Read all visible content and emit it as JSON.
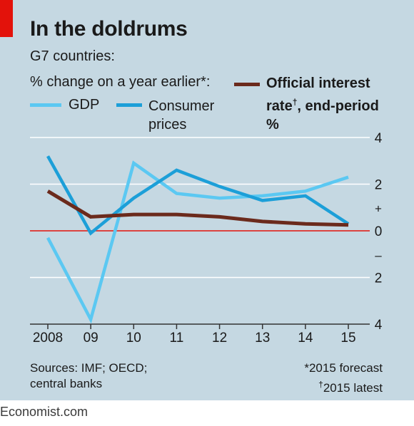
{
  "header": {
    "title": "In the doldrums",
    "subtitle": "G7 countries:",
    "left_axis_note": "% change on a year earlier*:",
    "legend": {
      "gdp": "GDP",
      "cpi_line1": "Consumer",
      "cpi_line2": "prices",
      "rate_line1": "Official interest",
      "rate_line2a": "rate",
      "rate_dagger": "†",
      "rate_line2b": ", end-period",
      "rate_line3": "%"
    }
  },
  "footer": {
    "sources_line1": "Sources: IMF; OECD;",
    "sources_line2": "central banks",
    "note_forecast": "*2015 forecast",
    "note_latest_dagger": "†",
    "note_latest": "2015 latest",
    "brand": "Economist.com"
  },
  "colors": {
    "background": "#c5d8e2",
    "gdp": "#5bc8f2",
    "cpi": "#1c9fd8",
    "rate": "#6b2a1c",
    "zero_line": "#e3120b",
    "grid": "#ffffff",
    "accent_tag": "#e3120b"
  },
  "chart_data": {
    "type": "line",
    "categories": [
      "2008",
      "09",
      "10",
      "11",
      "12",
      "13",
      "14",
      "15"
    ],
    "x": [
      2008,
      2009,
      2010,
      2011,
      2012,
      2013,
      2014,
      2015
    ],
    "ylim": [
      -4,
      4
    ],
    "y_ticks": [
      {
        "value": 4,
        "label": "4"
      },
      {
        "value": 2,
        "label": "2"
      },
      {
        "value": 1,
        "label": "+"
      },
      {
        "value": 0,
        "label": "0"
      },
      {
        "value": -1,
        "label": "–"
      },
      {
        "value": -2,
        "label": "2"
      },
      {
        "value": -4,
        "label": "4"
      }
    ],
    "grid": true,
    "legend_position": "top",
    "series": [
      {
        "name": "GDP",
        "color_key": "gdp",
        "values": [
          -0.3,
          -3.8,
          2.9,
          1.6,
          1.4,
          1.5,
          1.7,
          2.3
        ]
      },
      {
        "name": "Consumer prices",
        "color_key": "cpi",
        "values": [
          3.2,
          -0.1,
          1.4,
          2.6,
          1.9,
          1.3,
          1.5,
          0.3
        ]
      },
      {
        "name": "Official interest rate†, end-period %",
        "color_key": "rate",
        "values": [
          1.7,
          0.6,
          0.7,
          0.7,
          0.6,
          0.4,
          0.3,
          0.25
        ]
      }
    ]
  }
}
